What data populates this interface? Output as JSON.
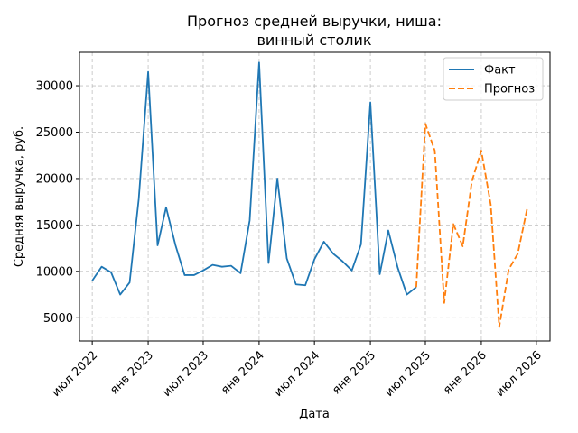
{
  "chart_data": {
    "type": "line",
    "title": [
      "Прогноз средней выручки, ниша:",
      "винный столик"
    ],
    "xlabel": "Дата",
    "ylabel": "Средняя выручка, руб.",
    "x_ticks": [
      {
        "date": "2022-07-01",
        "label": "июл 2022"
      },
      {
        "date": "2023-01-01",
        "label": "янв 2023"
      },
      {
        "date": "2023-07-01",
        "label": "июл 2023"
      },
      {
        "date": "2024-01-01",
        "label": "янв 2024"
      },
      {
        "date": "2024-07-01",
        "label": "июл 2024"
      },
      {
        "date": "2025-01-01",
        "label": "янв 2025"
      },
      {
        "date": "2025-07-01",
        "label": "июл 2025"
      },
      {
        "date": "2026-01-01",
        "label": "янв 2026"
      },
      {
        "date": "2026-07-01",
        "label": "июл 2026"
      }
    ],
    "y_ticks": [
      5000,
      10000,
      15000,
      20000,
      25000,
      30000
    ],
    "xlim": [
      "2022-05-20",
      "2026-08-15"
    ],
    "ylim": [
      2500,
      33600
    ],
    "grid": true,
    "legend_position": "top-right",
    "series": [
      {
        "name": "Факт",
        "color": "#1f77b4",
        "style": "solid",
        "points": [
          [
            "2022-07-01",
            9000
          ],
          [
            "2022-08-01",
            10500
          ],
          [
            "2022-09-01",
            9900
          ],
          [
            "2022-10-01",
            7500
          ],
          [
            "2022-11-01",
            8800
          ],
          [
            "2022-12-01",
            17800
          ],
          [
            "2023-01-01",
            31500
          ],
          [
            "2023-02-01",
            12800
          ],
          [
            "2023-03-01",
            16900
          ],
          [
            "2023-04-01",
            12800
          ],
          [
            "2023-05-01",
            9600
          ],
          [
            "2023-06-01",
            9600
          ],
          [
            "2023-07-01",
            10100
          ],
          [
            "2023-08-01",
            10700
          ],
          [
            "2023-09-01",
            10500
          ],
          [
            "2023-10-01",
            10600
          ],
          [
            "2023-11-01",
            9800
          ],
          [
            "2023-12-01",
            15500
          ],
          [
            "2024-01-01",
            32500
          ],
          [
            "2024-02-01",
            10900
          ],
          [
            "2024-03-01",
            20000
          ],
          [
            "2024-04-01",
            11400
          ],
          [
            "2024-05-01",
            8600
          ],
          [
            "2024-06-01",
            8500
          ],
          [
            "2024-07-01",
            11300
          ],
          [
            "2024-08-01",
            13200
          ],
          [
            "2024-09-01",
            11900
          ],
          [
            "2024-10-01",
            11100
          ],
          [
            "2024-11-01",
            10100
          ],
          [
            "2024-12-01",
            12900
          ],
          [
            "2025-01-01",
            28200
          ],
          [
            "2025-02-01",
            9700
          ],
          [
            "2025-03-01",
            14400
          ],
          [
            "2025-04-01",
            10400
          ],
          [
            "2025-05-01",
            7500
          ],
          [
            "2025-06-01",
            8300
          ]
        ]
      },
      {
        "name": "Прогноз",
        "color": "#ff7f0e",
        "style": "dashed",
        "points": [
          [
            "2025-06-01",
            8300
          ],
          [
            "2025-07-01",
            25900
          ],
          [
            "2025-08-01",
            23000
          ],
          [
            "2025-09-01",
            6600
          ],
          [
            "2025-10-01",
            15100
          ],
          [
            "2025-11-01",
            12700
          ],
          [
            "2025-12-01",
            19700
          ],
          [
            "2026-01-01",
            23000
          ],
          [
            "2026-02-01",
            17200
          ],
          [
            "2026-03-01",
            4000
          ],
          [
            "2026-04-01",
            10200
          ],
          [
            "2026-05-01",
            11900
          ],
          [
            "2026-06-01",
            16800
          ]
        ]
      }
    ]
  }
}
